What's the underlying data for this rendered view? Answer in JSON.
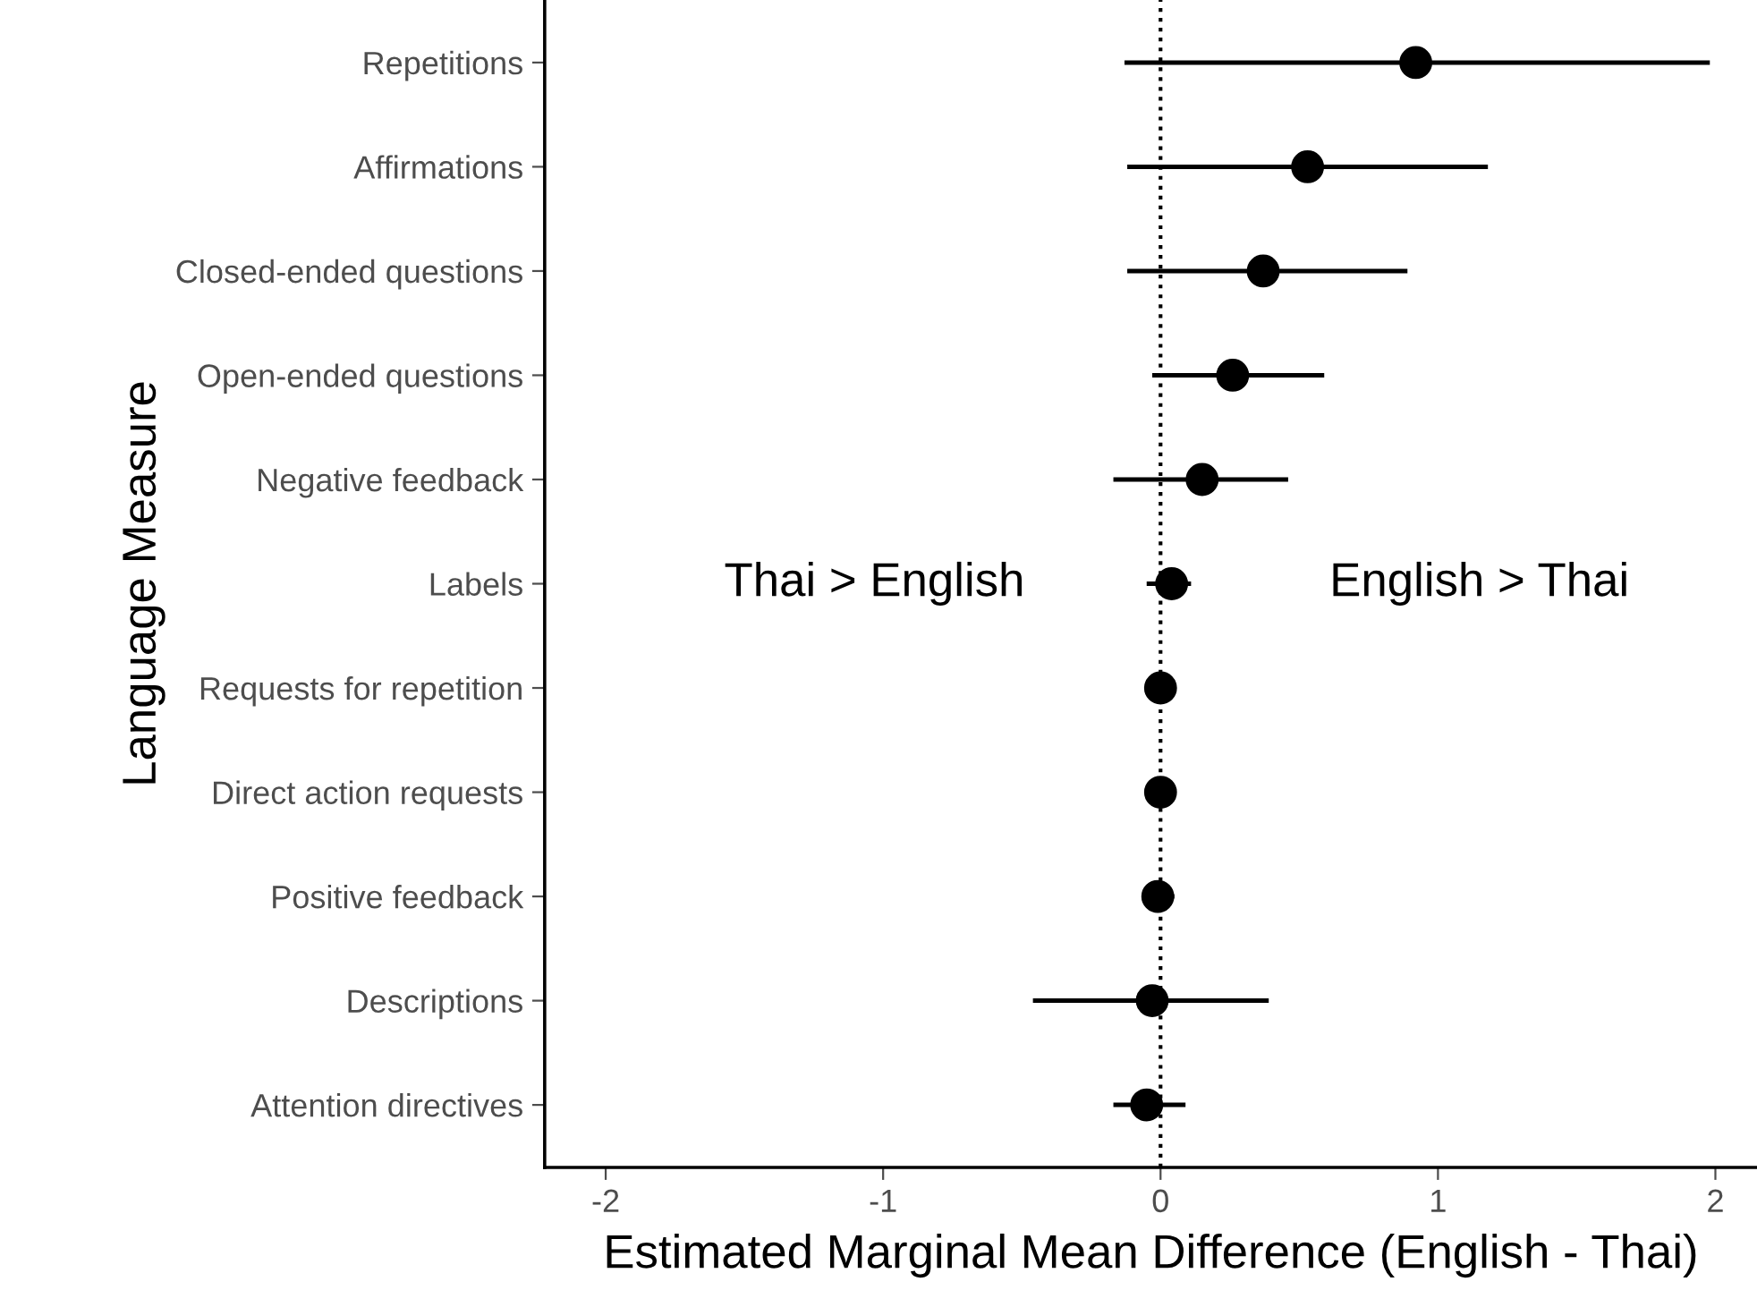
{
  "chart_data": {
    "type": "scatter",
    "orientation": "horizontal",
    "categories": [
      "Repetitions",
      "Affirmations",
      "Closed-ended questions",
      "Open-ended questions",
      "Negative feedback",
      "Labels",
      "Requests for repetition",
      "Direct action requests",
      "Positive feedback",
      "Descriptions",
      "Attention directives"
    ],
    "values": [
      0.92,
      0.53,
      0.37,
      0.26,
      0.15,
      0.04,
      0.0,
      0.0,
      -0.01,
      -0.03,
      -0.05
    ],
    "errors": [
      [
        -0.13,
        1.98
      ],
      [
        -0.12,
        1.18
      ],
      [
        -0.12,
        0.89
      ],
      [
        -0.03,
        0.59
      ],
      [
        -0.17,
        0.46
      ],
      [
        -0.05,
        0.11
      ],
      null,
      null,
      [
        -0.06,
        0.05
      ],
      [
        -0.46,
        0.39
      ],
      [
        -0.17,
        0.09
      ]
    ],
    "color": "#000000",
    "marker": "circle",
    "xlabel": "Estimated Marginal Mean Difference (English - Thai)",
    "ylabel": "Language Measure",
    "xlim": [
      -2.22,
      2.15
    ],
    "xticks": [
      {
        "value": -2,
        "label": "-2"
      },
      {
        "value": -1,
        "label": "-1"
      },
      0,
      1,
      2
    ],
    "ref_lines": [
      {
        "axis": "x",
        "value": 0,
        "line_style": "dotted"
      }
    ],
    "annotations": [
      "Thai > English",
      "English > Thai"
    ],
    "grid": false
  }
}
